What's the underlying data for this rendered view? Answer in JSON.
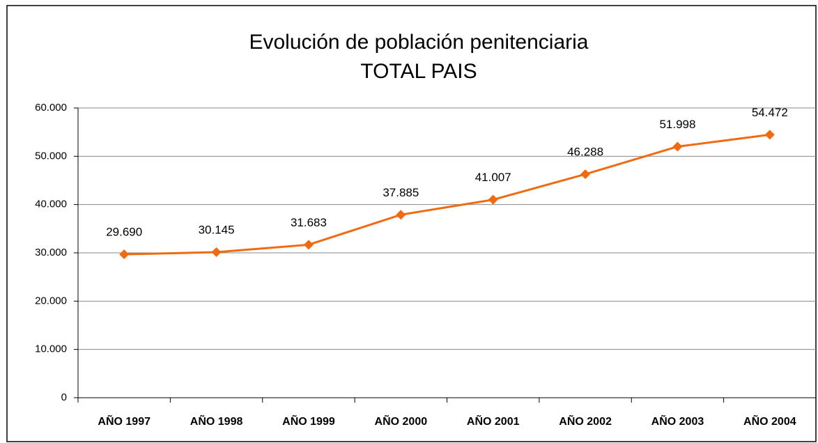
{
  "chart_data": {
    "type": "line",
    "title": "Evolución de población penitenciaria",
    "subtitle": "TOTAL PAIS",
    "categories": [
      "AÑO 1997",
      "AÑO 1998",
      "AÑO 1999",
      "AÑO 2000",
      "AÑO 2001",
      "AÑO 2002",
      "AÑO 2003",
      "AÑO 2004"
    ],
    "series": [
      {
        "name": "TOTAL PAIS",
        "color": "#f26a10",
        "values": [
          29690,
          30145,
          31683,
          37885,
          41007,
          46288,
          51998,
          54472
        ],
        "value_labels": [
          "29.690",
          "30.145",
          "31.683",
          "37.885",
          "41.007",
          "46.288",
          "51.998",
          "54.472"
        ]
      }
    ],
    "ylim": [
      0,
      60000
    ],
    "yticks": [
      0,
      {
        "value": 10000,
        "label": "10.000"
      },
      {
        "value": 20000,
        "label": "20.000"
      },
      {
        "value": 30000,
        "label": "30.000"
      },
      {
        "value": 40000,
        "label": "40.000"
      },
      {
        "value": 50000,
        "label": "50.000"
      },
      {
        "value": 60000,
        "label": "60.000"
      }
    ],
    "grid": true
  }
}
